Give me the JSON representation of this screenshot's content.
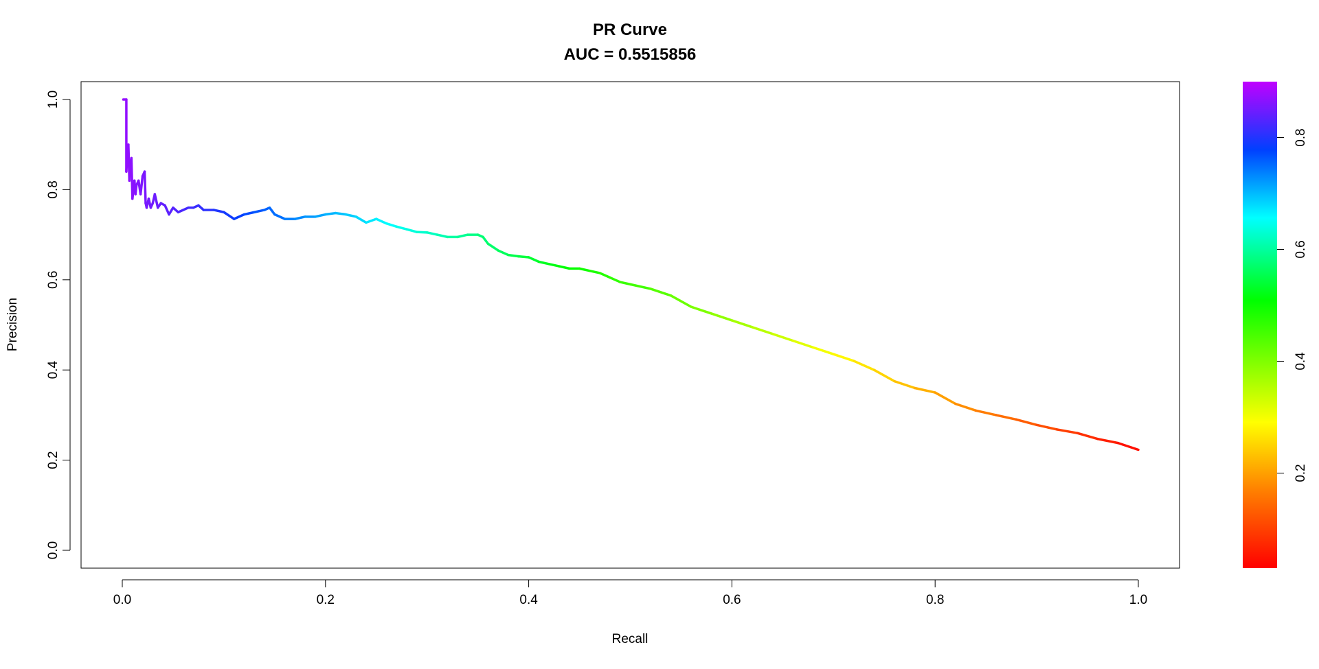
{
  "chart_data": {
    "type": "line",
    "title": "PR Curve",
    "subtitle": "AUC = 0.5515856",
    "xlabel": "Recall",
    "ylabel": "Precision",
    "xlim": [
      0.0,
      1.0
    ],
    "ylim": [
      0.0,
      1.0
    ],
    "x_ticks": [
      "0.0",
      "0.2",
      "0.4",
      "0.6",
      "0.8",
      "1.0"
    ],
    "y_ticks": [
      "0.0",
      "0.2",
      "0.4",
      "0.6",
      "0.8",
      "1.0"
    ],
    "grid": false,
    "legend": "none",
    "colorbar": {
      "placement": "right",
      "range": [
        0.03,
        0.9
      ],
      "ticks": [
        "0.2",
        "0.4",
        "0.6",
        "0.8"
      ],
      "colormap": "rainbow (red → orange → yellow → green → cyan → blue → magenta)"
    },
    "series": [
      {
        "x": [
          0.001,
          0.004,
          0.004,
          0.005,
          0.006,
          0.007,
          0.008,
          0.009,
          0.01,
          0.011,
          0.012,
          0.013,
          0.014,
          0.016,
          0.018,
          0.02,
          0.022,
          0.023,
          0.024,
          0.026,
          0.028,
          0.03,
          0.032,
          0.035,
          0.038,
          0.042,
          0.046,
          0.05,
          0.055,
          0.06,
          0.065,
          0.07,
          0.075,
          0.08,
          0.09,
          0.1,
          0.11,
          0.12,
          0.13,
          0.14,
          0.145,
          0.15,
          0.16,
          0.17,
          0.18,
          0.19,
          0.2,
          0.21,
          0.22,
          0.23,
          0.24,
          0.25,
          0.26,
          0.27,
          0.28,
          0.29,
          0.3,
          0.31,
          0.32,
          0.33,
          0.34,
          0.35,
          0.355,
          0.36,
          0.37,
          0.38,
          0.39,
          0.4,
          0.41,
          0.42,
          0.43,
          0.44,
          0.45,
          0.46,
          0.47,
          0.48,
          0.49,
          0.5,
          0.52,
          0.54,
          0.56,
          0.58,
          0.6,
          0.62,
          0.64,
          0.66,
          0.68,
          0.7,
          0.72,
          0.74,
          0.76,
          0.78,
          0.8,
          0.82,
          0.84,
          0.86,
          0.88,
          0.9,
          0.92,
          0.94,
          0.96,
          0.98,
          1.0
        ],
        "y": [
          1.0,
          1.0,
          0.84,
          0.88,
          0.9,
          0.82,
          0.86,
          0.87,
          0.78,
          0.8,
          0.82,
          0.79,
          0.81,
          0.82,
          0.79,
          0.83,
          0.84,
          0.77,
          0.76,
          0.78,
          0.76,
          0.77,
          0.79,
          0.76,
          0.77,
          0.765,
          0.745,
          0.76,
          0.75,
          0.755,
          0.76,
          0.76,
          0.765,
          0.755,
          0.755,
          0.75,
          0.735,
          0.745,
          0.75,
          0.755,
          0.76,
          0.745,
          0.735,
          0.735,
          0.74,
          0.74,
          0.745,
          0.748,
          0.745,
          0.74,
          0.727,
          0.735,
          0.725,
          0.718,
          0.712,
          0.706,
          0.705,
          0.7,
          0.695,
          0.695,
          0.7,
          0.7,
          0.695,
          0.68,
          0.665,
          0.655,
          0.652,
          0.65,
          0.64,
          0.635,
          0.63,
          0.625,
          0.625,
          0.62,
          0.615,
          0.605,
          0.595,
          0.59,
          0.58,
          0.565,
          0.54,
          0.525,
          0.51,
          0.495,
          0.48,
          0.465,
          0.45,
          0.435,
          0.42,
          0.4,
          0.375,
          0.36,
          0.35,
          0.325,
          0.31,
          0.3,
          0.29,
          0.278,
          0.268,
          0.26,
          0.247,
          0.238,
          0.223
        ]
      }
    ]
  }
}
